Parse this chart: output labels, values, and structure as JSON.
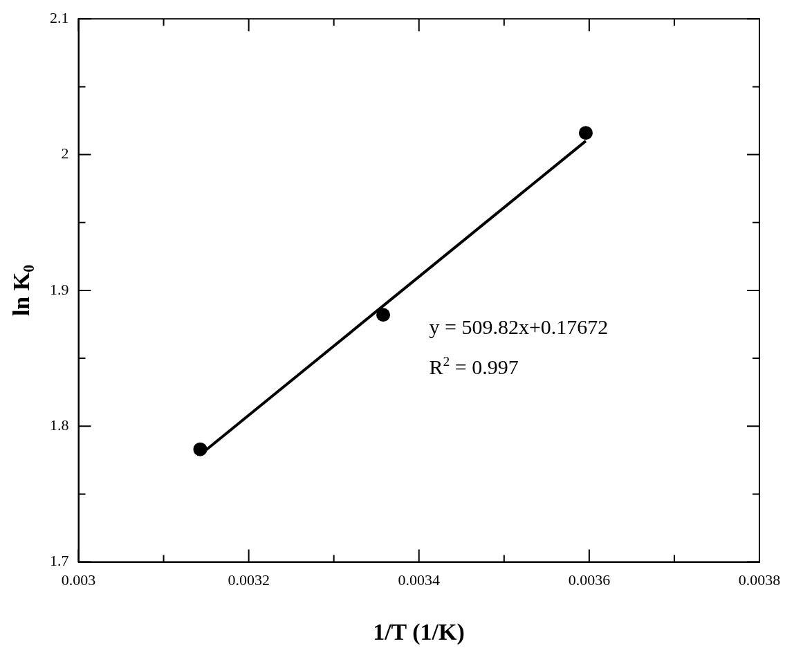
{
  "chart_data": {
    "type": "scatter",
    "xlabel": "1/T (1/K)",
    "ylabel": "ln K$_{0}$",
    "xlim": [
      0.003,
      0.0038
    ],
    "xticks": [
      0.003,
      {
        "value": 0.0031,
        "label": null
      },
      0.0032,
      {
        "value": 0.0033,
        "label": null
      },
      0.0034,
      {
        "value": 0.0035,
        "label": null
      },
      0.0036,
      {
        "value": 0.0037,
        "label": null
      },
      0.0038
    ],
    "ylim": [
      1.7,
      2.1
    ],
    "yticks": [
      1.7,
      {
        "value": 1.75,
        "label": null
      },
      1.8,
      {
        "value": 1.85,
        "label": null
      },
      1.9,
      {
        "value": 1.95,
        "label": null
      },
      2,
      {
        "value": 2.05,
        "label": null
      },
      2.1
    ],
    "series": [
      {
        "color": "#000000",
        "x": [
          0.003143,
          0.003358,
          0.003596
        ],
        "values": [
          1.783,
          1.882,
          2.016
        ],
        "marker": "circle"
      },
      {
        "type": "line",
        "color": "#000000",
        "x": [
          0.003143,
          0.003596
        ],
        "values": [
          1.779,
          2.01
        ],
        "marker": "none",
        "line_style": "solid"
      }
    ],
    "annotations": [
      "y = 509.82x+0.17672",
      "R$^{2}$ = 0.997"
    ],
    "grid": false,
    "legend": false
  }
}
